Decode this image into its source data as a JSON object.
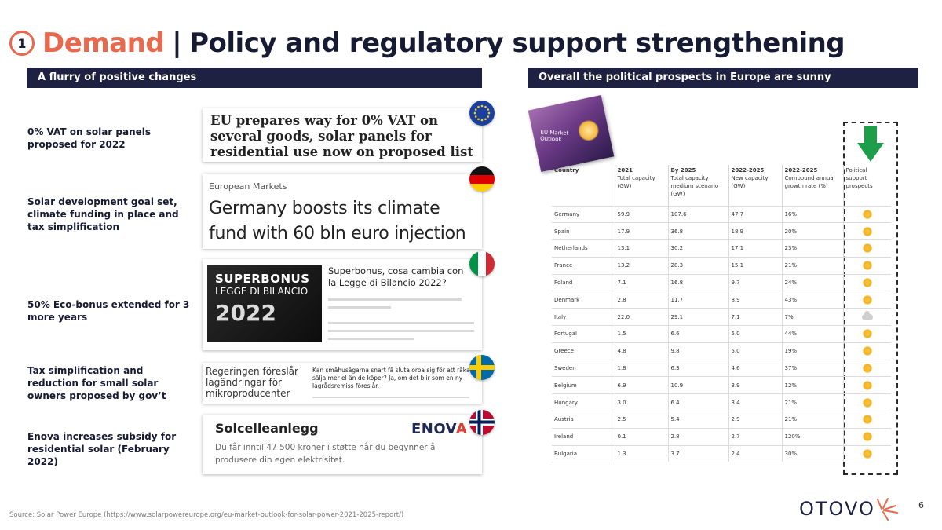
{
  "title": {
    "number": "1",
    "accent": "Demand",
    "separator": "|",
    "main": "Policy and regulatory support strengthening"
  },
  "left_section": {
    "header": "A flurry of positive changes",
    "items": [
      {
        "label": "0% VAT on solar panels proposed for 2022",
        "flag": "eu-flag-icon"
      },
      {
        "label": "Solar development goal set, climate funding in place and tax simplification",
        "flag": "germany-flag-icon"
      },
      {
        "label": "50% Eco-bonus extended for 3 more years",
        "flag": "italy-flag-icon"
      },
      {
        "label": "Tax simplification and reduction for small solar owners proposed by gov’t",
        "flag": "sweden-flag-icon"
      },
      {
        "label": "Enova increases subsidy for residential solar (February 2022)",
        "flag": "norway-flag-icon"
      }
    ]
  },
  "cards": {
    "eu": {
      "headline": "EU prepares way for 0% VAT on several goods, solar panels for residential use now on proposed list"
    },
    "de": {
      "kicker": "European Markets",
      "headline": "Germany boosts its climate fund with 60 bln euro injection"
    },
    "it": {
      "image_line1": "SUPERBONUS",
      "image_line2": "LEGGE DI BILANCIO",
      "image_line3": "2022",
      "title": "Superbonus, cosa cambia con la Legge di Bilancio 2022?"
    },
    "se": {
      "left": "Regeringen föreslår lagändringar för mikroproducenter",
      "right": "Kan småhusägarna snart få sluta oroa sig för att råka sälja mer el än de köper? Ja, om det blir som en ny lagrådsremiss föreslår."
    },
    "no": {
      "title": "Solcelleanlegg",
      "logo_main": "ENOV",
      "logo_accent": "A",
      "body": "Du får inntil 47 500 kroner i støtte når du begynner å produsere din egen elektrisitet."
    }
  },
  "right_section": {
    "header": "Overall the political prospects in Europe are sunny",
    "report_cover_text": "EU Market Outlook"
  },
  "table": {
    "headers": [
      {
        "main": "Country",
        "sub": ""
      },
      {
        "main": "2021",
        "sub": "Total capacity (GW)"
      },
      {
        "main": "By 2025",
        "sub": "Total capacity medium scenario (GW)"
      },
      {
        "main": "2022-2025",
        "sub": "New capacity (GW)"
      },
      {
        "main": "2022-2025",
        "sub": "Compound annual growth rate (%)"
      },
      {
        "main": "",
        "sub": "Political support prospects"
      }
    ],
    "rows": [
      {
        "country": "Germany",
        "c2021": "59.9",
        "c2025": "107.6",
        "newcap": "47.7",
        "cagr": "16%",
        "prospect": "sunny"
      },
      {
        "country": "Spain",
        "c2021": "17.9",
        "c2025": "36.8",
        "newcap": "18.9",
        "cagr": "20%",
        "prospect": "sunny"
      },
      {
        "country": "Netherlands",
        "c2021": "13.1",
        "c2025": "30.2",
        "newcap": "17.1",
        "cagr": "23%",
        "prospect": "sunny"
      },
      {
        "country": "France",
        "c2021": "13.2",
        "c2025": "28.3",
        "newcap": "15.1",
        "cagr": "21%",
        "prospect": "sunny"
      },
      {
        "country": "Poland",
        "c2021": "7.1",
        "c2025": "16.8",
        "newcap": "9.7",
        "cagr": "24%",
        "prospect": "sunny"
      },
      {
        "country": "Denmark",
        "c2021": "2.8",
        "c2025": "11.7",
        "newcap": "8.9",
        "cagr": "43%",
        "prospect": "sunny"
      },
      {
        "country": "Italy",
        "c2021": "22.0",
        "c2025": "29.1",
        "newcap": "7.1",
        "cagr": "7%",
        "prospect": "cloudy"
      },
      {
        "country": "Portugal",
        "c2021": "1.5",
        "c2025": "6.6",
        "newcap": "5.0",
        "cagr": "44%",
        "prospect": "sunny"
      },
      {
        "country": "Greece",
        "c2021": "4.8",
        "c2025": "9.8",
        "newcap": "5.0",
        "cagr": "19%",
        "prospect": "sunny"
      },
      {
        "country": "Sweden",
        "c2021": "1.8",
        "c2025": "6.3",
        "newcap": "4.6",
        "cagr": "37%",
        "prospect": "sunny"
      },
      {
        "country": "Belgium",
        "c2021": "6.9",
        "c2025": "10.9",
        "newcap": "3.9",
        "cagr": "12%",
        "prospect": "sunny"
      },
      {
        "country": "Hungary",
        "c2021": "3.0",
        "c2025": "6.4",
        "newcap": "3.4",
        "cagr": "21%",
        "prospect": "sunny"
      },
      {
        "country": "Austria",
        "c2021": "2.5",
        "c2025": "5.4",
        "newcap": "2.9",
        "cagr": "21%",
        "prospect": "sunny"
      },
      {
        "country": "Ireland",
        "c2021": "0.1",
        "c2025": "2.8",
        "newcap": "2.7",
        "cagr": "120%",
        "prospect": "sunny"
      },
      {
        "country": "Bulgaria",
        "c2021": "1.3",
        "c2025": "3.7",
        "newcap": "2.4",
        "cagr": "30%",
        "prospect": "sunny"
      }
    ]
  },
  "footer": {
    "source": "Source: Solar Power Europe (https://www.solarpowereurope.org/eu-market-outlook-for-solar-power-2021-2025-report/)",
    "logo": "OTOVO",
    "page_number": "6"
  },
  "colors": {
    "accent": "#e8694b",
    "navy": "#1f2142",
    "arrow_green": "#1e9e4a",
    "sun": "#f2b01e"
  }
}
